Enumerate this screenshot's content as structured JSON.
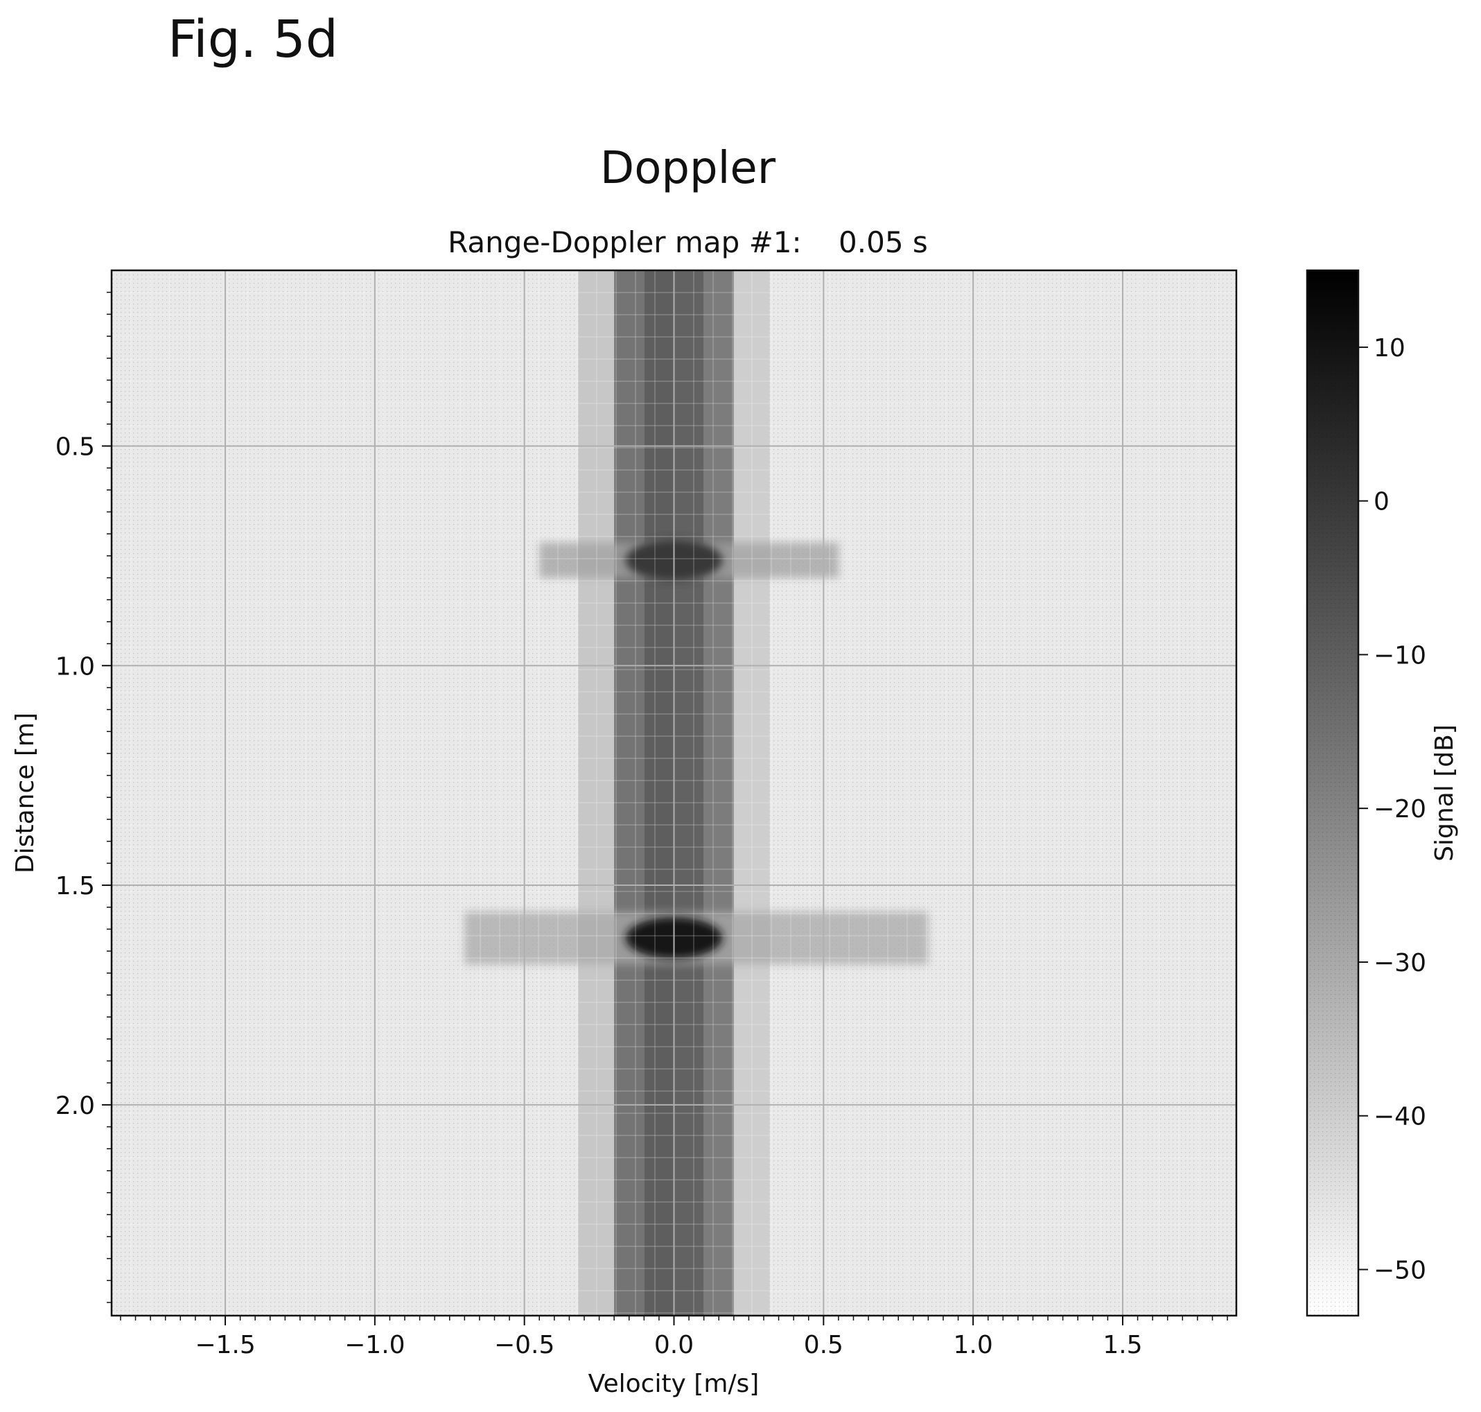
{
  "figure_label": "Fig. 5d",
  "chart_data": {
    "type": "heatmap",
    "title": "Doppler",
    "subtitle": "Range-Doppler map #1:    0.05 s",
    "xlabel": "Velocity [m/s]",
    "ylabel": "Distance [m]",
    "colorbar_label": "Signal [dB]",
    "colormap": "greys",
    "xlim": [
      -1.88,
      1.88
    ],
    "ylim": [
      2.48,
      0.1
    ],
    "y_inverted": true,
    "clim": [
      -53,
      15
    ],
    "x_ticks": [
      -1.5,
      -1.0,
      -0.5,
      0.0,
      0.5,
      1.0,
      1.5
    ],
    "x_tick_labels": [
      "−1.5",
      "−1.0",
      "−0.5",
      "0.0",
      "0.5",
      "1.0",
      "1.5"
    ],
    "y_ticks": [
      0.5,
      1.0,
      1.5,
      2.0
    ],
    "y_tick_labels": [
      "0.5",
      "1.0",
      "1.5",
      "2.0"
    ],
    "colorbar_ticks": [
      10,
      0,
      -10,
      -20,
      -30,
      -40,
      -50
    ],
    "colorbar_tick_labels": [
      "10",
      "0",
      "−10",
      "−20",
      "−30",
      "−40",
      "−50"
    ],
    "grid": true,
    "background_level_db": -47,
    "doppler_columns": [
      {
        "velocity_from": -0.32,
        "velocity_to": -0.2,
        "signal_db": -38
      },
      {
        "velocity_from": -0.2,
        "velocity_to": -0.1,
        "signal_db": -16
      },
      {
        "velocity_from": -0.1,
        "velocity_to": 0.0,
        "signal_db": -10
      },
      {
        "velocity_from": 0.0,
        "velocity_to": 0.1,
        "signal_db": -11
      },
      {
        "velocity_from": 0.1,
        "velocity_to": 0.2,
        "signal_db": -18
      },
      {
        "velocity_from": 0.2,
        "velocity_to": 0.32,
        "signal_db": -40
      }
    ],
    "range_bands": [
      {
        "distance_from": 0.72,
        "distance_to": 0.8,
        "velocity_from": -0.45,
        "velocity_to": 0.55,
        "signal_db": -28
      },
      {
        "distance_from": 1.56,
        "distance_to": 1.68,
        "velocity_from": -0.7,
        "velocity_to": 0.85,
        "signal_db": -30
      }
    ],
    "peaks": [
      {
        "velocity": 0.0,
        "distance": 0.76,
        "signal_db": 0
      },
      {
        "velocity": 0.0,
        "distance": 1.62,
        "signal_db": 10
      }
    ]
  }
}
